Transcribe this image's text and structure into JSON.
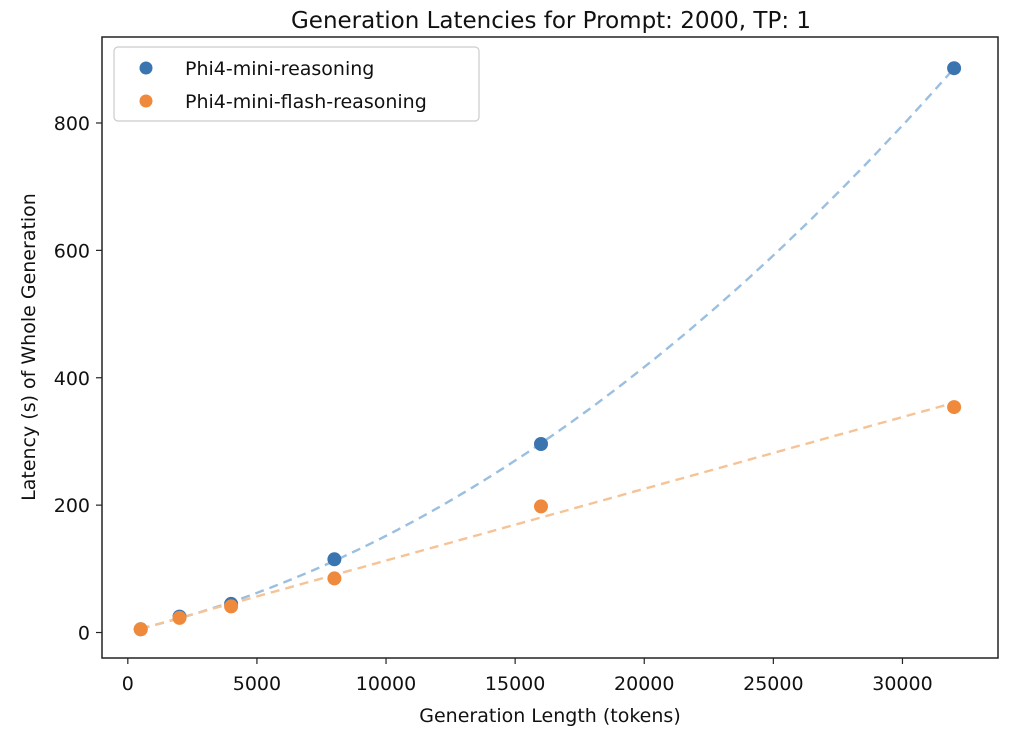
{
  "chart_data": {
    "type": "scatter",
    "title": "Generation Latencies for Prompt: 2000, TP: 1",
    "xlabel": "Generation Length (tokens)",
    "ylabel": "Latency (s) of Whole Generation",
    "xlim": [
      -1000,
      33700
    ],
    "ylim": [
      -40,
      935
    ],
    "xticks": [
      0,
      5000,
      10000,
      15000,
      20000,
      25000,
      30000
    ],
    "yticks": [
      0,
      200,
      400,
      600,
      800
    ],
    "grid": false,
    "legend_position": "top-left",
    "series": [
      {
        "name": "Phi4-mini-reasoning",
        "color": "#3a75b0",
        "fit_color": "#9bbfe0",
        "x": [
          500,
          2000,
          4000,
          8000,
          16000,
          32000
        ],
        "y": [
          5,
          25,
          45,
          115,
          296,
          886
        ],
        "fit": "quadratic"
      },
      {
        "name": "Phi4-mini-flash-reasoning",
        "color": "#ef8a3c",
        "fit_color": "#f6c396",
        "x": [
          500,
          2000,
          4000,
          8000,
          16000,
          32000
        ],
        "y": [
          5,
          23,
          41,
          85,
          198,
          354
        ],
        "fit": "linear"
      }
    ]
  }
}
